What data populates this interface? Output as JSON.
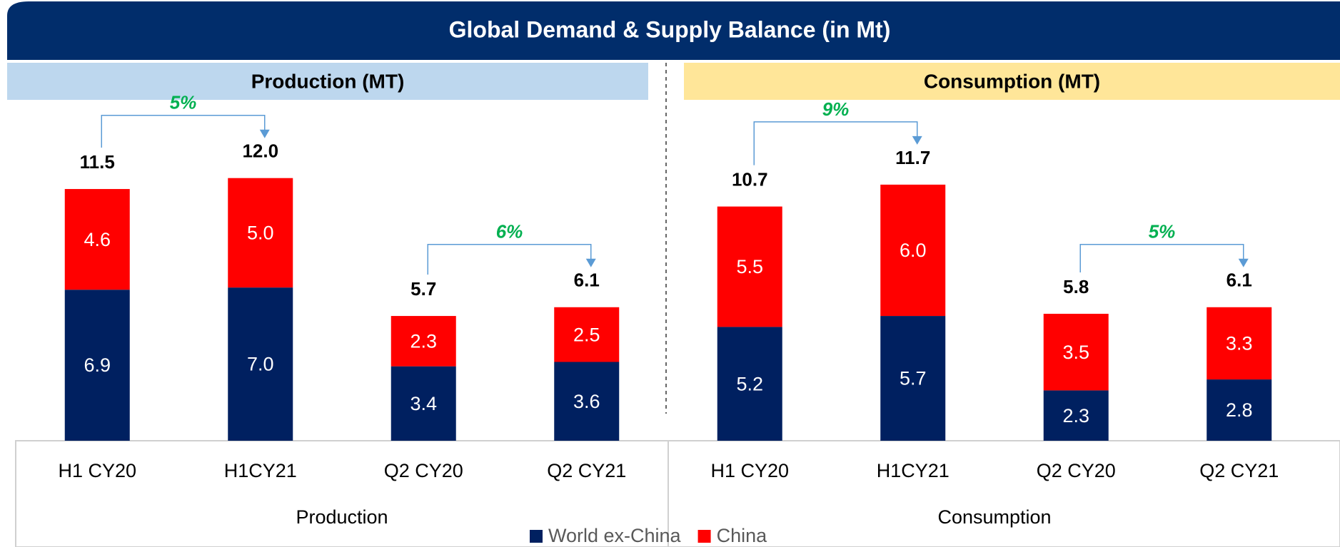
{
  "title": "Global Demand & Supply Balance (in Mt)",
  "chart_data": [
    {
      "type": "bar",
      "stacked": true,
      "title": "Production (MT)",
      "group_label": "Production",
      "header_color": "#bdd7ee",
      "categories": [
        "H1 CY20",
        "H1CY21",
        "Q2 CY20",
        "Q2 CY21"
      ],
      "series": [
        {
          "name": "World ex-China",
          "color": "#002060",
          "values": [
            6.9,
            7,
            3.4,
            3.6
          ],
          "value_labels": [
            "6.9",
            "7.0",
            "3.4",
            "3.6"
          ]
        },
        {
          "name": "China",
          "color": "#ff0000",
          "values": [
            4.6,
            5,
            2.3,
            2.5
          ],
          "value_labels": [
            "4.6",
            "5.0",
            "2.3",
            "2.5"
          ]
        }
      ],
      "totals": [
        11.5,
        12,
        5.7,
        6.1
      ],
      "total_labels": [
        "11.5",
        "12.0",
        "5.7",
        "6.1"
      ],
      "growth_labels": [
        "5%",
        "6%"
      ],
      "ylim": [
        0,
        13
      ]
    },
    {
      "type": "bar",
      "stacked": true,
      "title": "Consumption (MT)",
      "group_label": "Consumption",
      "header_color": "#ffe699",
      "categories": [
        "H1 CY20",
        "H1CY21",
        "Q2 CY20",
        "Q2 CY21"
      ],
      "series": [
        {
          "color": "#002060",
          "values": [
            5.2,
            5.7,
            2.3,
            2.8
          ],
          "value_labels": [
            "5.2",
            "5.7",
            "2.3",
            "2.8"
          ]
        },
        {
          "color": "#ff0000",
          "values": [
            5.5,
            6,
            3.5,
            3.3
          ],
          "value_labels": [
            "5.5",
            "6.0",
            "3.5",
            "3.3"
          ]
        }
      ],
      "totals": [
        10.7,
        11.7,
        5.8,
        6.1
      ],
      "total_labels": [
        "10.7",
        "11.7",
        "5.8",
        "6.1"
      ],
      "growth_labels": [
        "9%",
        "5%"
      ],
      "ylim": [
        0,
        13
      ]
    }
  ]
}
